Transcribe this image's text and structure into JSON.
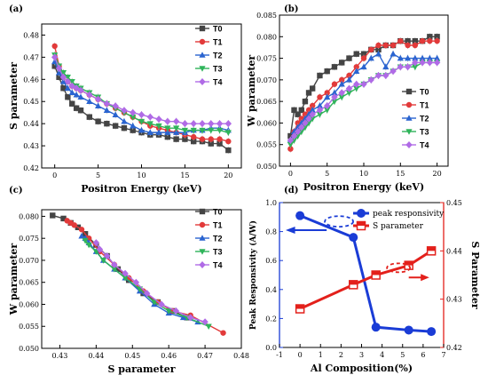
{
  "colors": {
    "T0": "#444444",
    "T1": "#e23a3a",
    "T2": "#2a64d0",
    "T3": "#2fb45a",
    "T4": "#b06be6",
    "blue": "#1a3cd6",
    "red": "#e3201b"
  },
  "chart_data": [
    {
      "panel": "(a)",
      "type": "line",
      "xlabel": "Positron Energy (keV)",
      "ylabel": "S parameter",
      "xlim": [
        -1.5,
        21.5
      ],
      "ylim": [
        0.42,
        0.485
      ],
      "xticks": [
        0,
        5,
        10,
        15,
        20
      ],
      "yticks": [
        0.42,
        0.43,
        0.44,
        0.45,
        0.46,
        0.47,
        0.48
      ],
      "legend": "top-right",
      "error_bars": true,
      "x": [
        0,
        0.5,
        1,
        1.5,
        2,
        2.5,
        3,
        4,
        5,
        6,
        7,
        8,
        9,
        10,
        11,
        12,
        13,
        14,
        15,
        16,
        17,
        18,
        19,
        20
      ],
      "series": [
        {
          "name": "T0",
          "marker": "square",
          "values": [
            0.466,
            0.461,
            0.456,
            0.452,
            0.449,
            0.447,
            0.446,
            0.443,
            0.441,
            0.44,
            0.439,
            0.438,
            0.437,
            0.436,
            0.435,
            0.435,
            0.434,
            0.433,
            0.433,
            0.432,
            0.432,
            0.431,
            0.431,
            0.428
          ]
        },
        {
          "name": "T1",
          "marker": "circle",
          "values": [
            0.475,
            0.466,
            0.461,
            0.459,
            0.457,
            0.456,
            0.455,
            0.453,
            0.451,
            0.449,
            0.447,
            0.445,
            0.443,
            0.441,
            0.439,
            0.438,
            0.437,
            0.436,
            0.435,
            0.434,
            0.433,
            0.433,
            0.433,
            0.432
          ]
        },
        {
          "name": "T2",
          "marker": "triangle-up",
          "values": [
            0.468,
            0.463,
            0.459,
            0.456,
            0.454,
            0.453,
            0.452,
            0.45,
            0.448,
            0.446,
            0.444,
            0.441,
            0.439,
            0.437,
            0.436,
            0.436,
            0.436,
            0.436,
            0.436,
            0.437,
            0.437,
            0.438,
            0.438,
            0.437
          ]
        },
        {
          "name": "T3",
          "marker": "triangle-down",
          "values": [
            0.471,
            0.466,
            0.463,
            0.461,
            0.459,
            0.457,
            0.456,
            0.454,
            0.452,
            0.449,
            0.447,
            0.445,
            0.443,
            0.441,
            0.44,
            0.439,
            0.438,
            0.438,
            0.437,
            0.437,
            0.437,
            0.437,
            0.437,
            0.436
          ]
        },
        {
          "name": "T4",
          "marker": "diamond",
          "values": [
            0.47,
            0.465,
            0.461,
            0.459,
            0.457,
            0.456,
            0.455,
            0.453,
            0.451,
            0.449,
            0.448,
            0.446,
            0.445,
            0.444,
            0.443,
            0.442,
            0.441,
            0.441,
            0.44,
            0.44,
            0.44,
            0.44,
            0.44,
            0.44
          ]
        }
      ]
    },
    {
      "panel": "(b)",
      "type": "line",
      "xlabel": "Positron Energy (keV)",
      "ylabel": "W parameter",
      "xlim": [
        -1.5,
        21.5
      ],
      "ylim": [
        0.05,
        0.085
      ],
      "xticks": [
        0,
        5,
        10,
        15,
        20
      ],
      "yticks": [
        0.05,
        0.055,
        0.06,
        0.065,
        0.07,
        0.075,
        0.08,
        0.085
      ],
      "legend": "bottom-right",
      "error_bars": true,
      "x": [
        0,
        0.5,
        1,
        1.5,
        2,
        2.5,
        3,
        4,
        5,
        6,
        7,
        8,
        9,
        10,
        11,
        12,
        13,
        14,
        15,
        16,
        17,
        18,
        19,
        20
      ],
      "series": [
        {
          "name": "T0",
          "marker": "square",
          "values": [
            0.057,
            0.063,
            0.062,
            0.063,
            0.065,
            0.067,
            0.068,
            0.071,
            0.072,
            0.073,
            0.074,
            0.075,
            0.076,
            0.076,
            0.077,
            0.077,
            0.078,
            0.078,
            0.079,
            0.079,
            0.079,
            0.079,
            0.08,
            0.08
          ]
        },
        {
          "name": "T1",
          "marker": "circle",
          "values": [
            0.054,
            0.058,
            0.06,
            0.061,
            0.062,
            0.063,
            0.064,
            0.066,
            0.067,
            0.069,
            0.07,
            0.071,
            0.073,
            0.075,
            0.077,
            0.078,
            0.078,
            0.078,
            0.079,
            0.078,
            0.078,
            0.079,
            0.079,
            0.079
          ]
        },
        {
          "name": "T2",
          "marker": "triangle-up",
          "values": [
            0.056,
            0.058,
            0.059,
            0.06,
            0.061,
            0.062,
            0.063,
            0.064,
            0.066,
            0.067,
            0.069,
            0.07,
            0.072,
            0.073,
            0.075,
            0.076,
            0.073,
            0.076,
            0.075,
            0.075,
            0.075,
            0.075,
            0.075,
            0.075
          ]
        },
        {
          "name": "T3",
          "marker": "triangle-down",
          "values": [
            0.055,
            0.056,
            0.057,
            0.058,
            0.059,
            0.06,
            0.061,
            0.062,
            0.063,
            0.065,
            0.066,
            0.067,
            0.068,
            0.069,
            0.07,
            0.071,
            0.071,
            0.072,
            0.073,
            0.073,
            0.073,
            0.074,
            0.074,
            0.074
          ]
        },
        {
          "name": "T4",
          "marker": "diamond",
          "values": [
            0.056,
            0.057,
            0.058,
            0.059,
            0.06,
            0.061,
            0.062,
            0.063,
            0.064,
            0.066,
            0.067,
            0.068,
            0.069,
            0.069,
            0.07,
            0.071,
            0.071,
            0.072,
            0.073,
            0.073,
            0.074,
            0.074,
            0.074,
            0.074
          ]
        }
      ]
    },
    {
      "panel": "(c)",
      "type": "line",
      "xlabel": "S parameter",
      "ylabel": "W parameter",
      "xlim": [
        0.425,
        0.48
      ],
      "ylim": [
        0.05,
        0.0815
      ],
      "xticks": [
        0.43,
        0.44,
        0.45,
        0.46,
        0.47,
        0.48
      ],
      "yticks": [
        0.05,
        0.055,
        0.06,
        0.065,
        0.07,
        0.075,
        0.08
      ],
      "legend": "top-right",
      "error_bars": false,
      "series": [
        {
          "name": "T0",
          "marker": "square",
          "points": [
            [
              0.428,
              0.0802
            ],
            [
              0.431,
              0.0795
            ],
            [
              0.433,
              0.0785
            ],
            [
              0.435,
              0.0775
            ],
            [
              0.437,
              0.076
            ],
            [
              0.44,
              0.0735
            ],
            [
              0.443,
              0.071
            ],
            [
              0.446,
              0.068
            ],
            [
              0.449,
              0.0655
            ],
            [
              0.453,
              0.0625
            ],
            [
              0.457,
              0.0605
            ],
            [
              0.461,
              0.0585
            ],
            [
              0.465,
              0.057
            ]
          ]
        },
        {
          "name": "T1",
          "marker": "circle",
          "points": [
            [
              0.432,
              0.079
            ],
            [
              0.433,
              0.0785
            ],
            [
              0.434,
              0.078
            ],
            [
              0.436,
              0.077
            ],
            [
              0.438,
              0.075
            ],
            [
              0.441,
              0.072
            ],
            [
              0.445,
              0.069
            ],
            [
              0.449,
              0.066
            ],
            [
              0.453,
              0.063
            ],
            [
              0.457,
              0.0605
            ],
            [
              0.461,
              0.0585
            ],
            [
              0.466,
              0.0575
            ],
            [
              0.475,
              0.0535
            ]
          ]
        },
        {
          "name": "T2",
          "marker": "triangle-up",
          "points": [
            [
              0.436,
              0.0755
            ],
            [
              0.437,
              0.075
            ],
            [
              0.438,
              0.074
            ],
            [
              0.44,
              0.072
            ],
            [
              0.442,
              0.07
            ],
            [
              0.445,
              0.068
            ],
            [
              0.448,
              0.066
            ],
            [
              0.452,
              0.063
            ],
            [
              0.456,
              0.06
            ],
            [
              0.46,
              0.058
            ],
            [
              0.464,
              0.057
            ],
            [
              0.468,
              0.056
            ]
          ]
        },
        {
          "name": "T3",
          "marker": "triangle-down",
          "points": [
            [
              0.437,
              0.0745
            ],
            [
              0.438,
              0.0735
            ],
            [
              0.44,
              0.072
            ],
            [
              0.442,
              0.07
            ],
            [
              0.445,
              0.068
            ],
            [
              0.448,
              0.066
            ],
            [
              0.452,
              0.0635
            ],
            [
              0.456,
              0.0605
            ],
            [
              0.46,
              0.0585
            ],
            [
              0.465,
              0.057
            ],
            [
              0.471,
              0.055
            ]
          ]
        },
        {
          "name": "T4",
          "marker": "diamond",
          "points": [
            [
              0.44,
              0.074
            ],
            [
              0.441,
              0.0725
            ],
            [
              0.443,
              0.071
            ],
            [
              0.445,
              0.069
            ],
            [
              0.448,
              0.067
            ],
            [
              0.451,
              0.065
            ],
            [
              0.454,
              0.0625
            ],
            [
              0.458,
              0.06
            ],
            [
              0.462,
              0.0585
            ],
            [
              0.466,
              0.057
            ],
            [
              0.47,
              0.056
            ]
          ]
        }
      ]
    },
    {
      "panel": "(d)",
      "type": "line",
      "xlabel": "Al Composition(%)",
      "ylabel": "Peak Responsivity (A/W)",
      "ylabel_right": "S Parameter",
      "xlim": [
        -1,
        7
      ],
      "ylim": [
        0,
        1.0
      ],
      "ylim_right": [
        0.42,
        0.45
      ],
      "xticks": [
        -1,
        0,
        1,
        2,
        3,
        4,
        5,
        6,
        7
      ],
      "yticks": [
        0.0,
        0.2,
        0.4,
        0.6,
        0.8,
        1.0
      ],
      "yticks_right": [
        0.42,
        0.43,
        0.44,
        0.45
      ],
      "legend": "top-right",
      "x": [
        0,
        2.6,
        3.7,
        5.3,
        6.4
      ],
      "series": [
        {
          "name": "peak responsivity",
          "axis": "left",
          "marker": "circle",
          "values": [
            0.91,
            0.76,
            0.14,
            0.12,
            0.11
          ]
        },
        {
          "name": "S parameter",
          "axis": "right",
          "marker": "square",
          "values": [
            0.428,
            0.433,
            0.435,
            0.437,
            0.44
          ]
        }
      ]
    }
  ]
}
